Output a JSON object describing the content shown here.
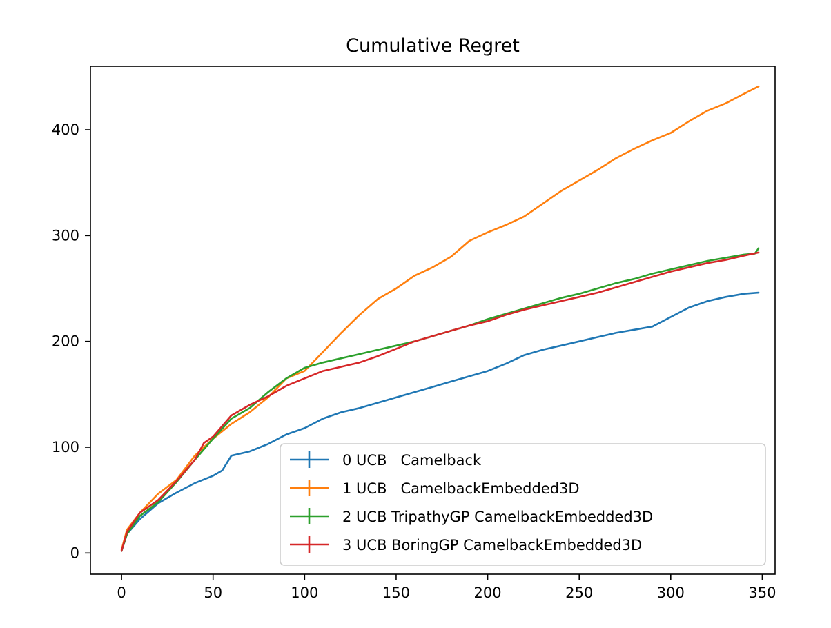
{
  "chart_data": {
    "type": "line",
    "title": "Cumulative Regret",
    "xlabel": "",
    "ylabel": "",
    "xlim": [
      -17,
      357
    ],
    "ylim": [
      -20,
      460
    ],
    "xticks": [
      0,
      50,
      100,
      150,
      200,
      250,
      300,
      350
    ],
    "yticks": [
      0,
      100,
      200,
      300,
      400
    ],
    "grid": false,
    "legend_position": "lower-right",
    "series": [
      {
        "name": "0 UCB   Camelback",
        "color": "#1f77b4",
        "x": [
          0,
          3,
          10,
          20,
          30,
          40,
          50,
          55,
          60,
          70,
          80,
          90,
          100,
          110,
          120,
          130,
          140,
          150,
          160,
          170,
          180,
          190,
          200,
          210,
          220,
          230,
          240,
          250,
          260,
          270,
          280,
          290,
          300,
          310,
          320,
          330,
          340,
          348
        ],
        "y": [
          2,
          18,
          32,
          47,
          57,
          66,
          73,
          78,
          92,
          96,
          103,
          112,
          118,
          127,
          133,
          137,
          142,
          147,
          152,
          157,
          162,
          167,
          172,
          179,
          187,
          192,
          196,
          200,
          204,
          208,
          211,
          214,
          223,
          232,
          238,
          242,
          245,
          246
        ]
      },
      {
        "name": "1 UCB   CamelbackEmbedded3D",
        "color": "#ff7f0e",
        "x": [
          0,
          3,
          10,
          20,
          30,
          40,
          50,
          60,
          70,
          80,
          90,
          100,
          110,
          120,
          130,
          140,
          150,
          160,
          170,
          180,
          190,
          200,
          210,
          220,
          230,
          240,
          250,
          260,
          270,
          280,
          290,
          300,
          310,
          320,
          330,
          340,
          348
        ],
        "y": [
          3,
          22,
          38,
          56,
          69,
          92,
          108,
          122,
          133,
          147,
          165,
          172,
          190,
          208,
          225,
          240,
          250,
          262,
          270,
          280,
          295,
          303,
          310,
          318,
          330,
          342,
          352,
          362,
          373,
          382,
          390,
          397,
          408,
          418,
          425,
          434,
          441
        ]
      },
      {
        "name": "2 UCB TripathyGP CamelbackEmbedded3D",
        "color": "#2ca02c",
        "x": [
          0,
          3,
          10,
          20,
          30,
          40,
          50,
          60,
          70,
          80,
          90,
          100,
          110,
          120,
          130,
          140,
          150,
          160,
          170,
          180,
          190,
          200,
          210,
          220,
          230,
          240,
          250,
          260,
          270,
          280,
          290,
          300,
          310,
          320,
          330,
          340,
          346,
          348
        ],
        "y": [
          2,
          18,
          35,
          48,
          67,
          88,
          108,
          127,
          137,
          152,
          165,
          175,
          180,
          184,
          188,
          192,
          196,
          200,
          205,
          210,
          215,
          221,
          226,
          231,
          236,
          241,
          245,
          250,
          255,
          259,
          264,
          268,
          272,
          276,
          279,
          282,
          283,
          288
        ]
      },
      {
        "name": "3 UCB BoringGP CamelbackEmbedded3D",
        "color": "#d62728",
        "x": [
          0,
          3,
          10,
          20,
          30,
          40,
          45,
          50,
          60,
          70,
          80,
          90,
          100,
          110,
          120,
          130,
          140,
          150,
          160,
          170,
          180,
          190,
          200,
          210,
          220,
          230,
          240,
          250,
          260,
          270,
          280,
          290,
          300,
          310,
          320,
          330,
          340,
          348
        ],
        "y": [
          2,
          20,
          38,
          50,
          68,
          88,
          104,
          110,
          130,
          140,
          148,
          158,
          165,
          172,
          176,
          180,
          186,
          193,
          200,
          205,
          210,
          215,
          219,
          225,
          230,
          234,
          238,
          242,
          246,
          251,
          256,
          261,
          266,
          270,
          274,
          277,
          281,
          284
        ]
      }
    ]
  }
}
